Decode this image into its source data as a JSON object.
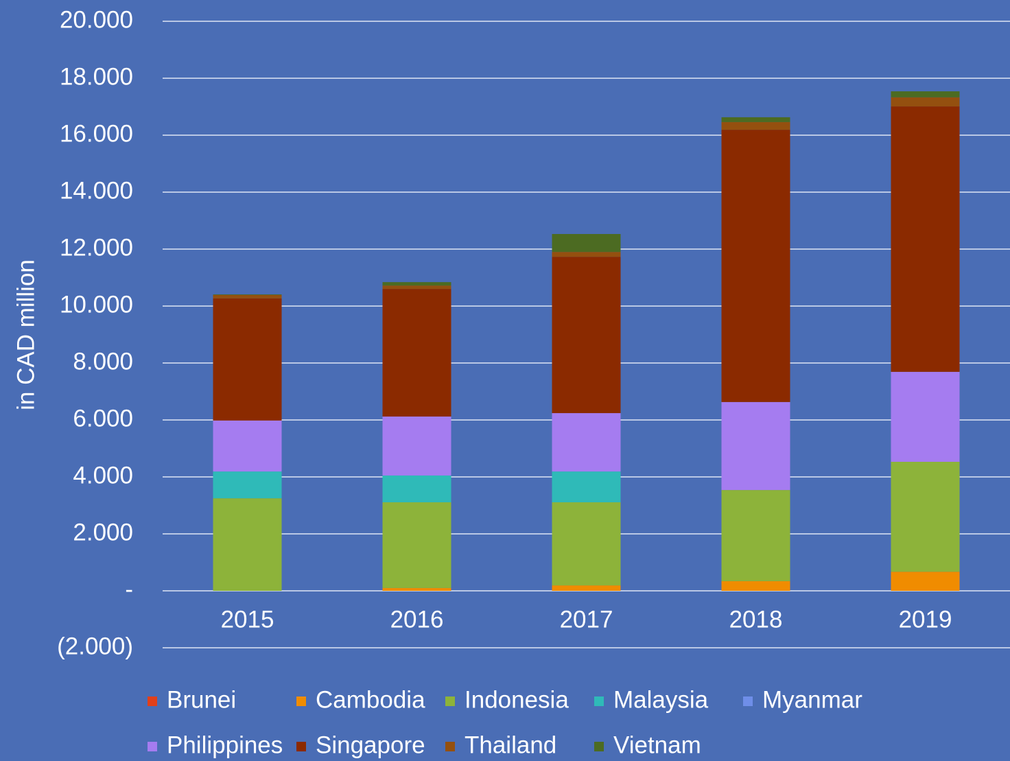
{
  "chart_data": {
    "type": "stacked_bar",
    "ylabel": "in CAD million",
    "categories": [
      "2015",
      "2016",
      "2017",
      "2018",
      "2019"
    ],
    "series": [
      {
        "name": "Brunei",
        "color": "#e0401b",
        "values": [
          0,
          0,
          0,
          0,
          0
        ]
      },
      {
        "name": "Cambodia",
        "color": "#f08c00",
        "values": [
          0,
          100,
          190,
          340,
          670
        ]
      },
      {
        "name": "Indonesia",
        "color": "#8db33a",
        "values": [
          3250,
          3010,
          2920,
          3200,
          3860
        ]
      },
      {
        "name": "Malaysia",
        "color": "#2fbab8",
        "values": [
          940,
          940,
          1080,
          0,
          0
        ]
      },
      {
        "name": "Myanmar",
        "color": "#6f8ee8",
        "values": [
          0,
          0,
          0,
          0,
          0
        ]
      },
      {
        "name": "Philippines",
        "color": "#a57cf0",
        "values": [
          1790,
          2070,
          2050,
          3090,
          3160
        ]
      },
      {
        "name": "Singapore",
        "color": "#8b2a00",
        "values": [
          4290,
          4480,
          5490,
          9560,
          9320
        ]
      },
      {
        "name": "Thailand",
        "color": "#94500f",
        "values": [
          120,
          120,
          170,
          270,
          320
        ]
      },
      {
        "name": "Vietnam",
        "color": "#4c6b22",
        "values": [
          20,
          120,
          630,
          170,
          210
        ]
      }
    ],
    "ylim": [
      -2000,
      20000
    ],
    "yticks": [
      {
        "value": -2000,
        "label": "(2.000)"
      },
      {
        "value": 0,
        "label": "-"
      },
      {
        "value": 2000,
        "label": "2.000"
      },
      {
        "value": 4000,
        "label": "4.000"
      },
      {
        "value": 6000,
        "label": "6.000"
      },
      {
        "value": 8000,
        "label": "8.000"
      },
      {
        "value": 10000,
        "label": "10.000"
      },
      {
        "value": 12000,
        "label": "12.000"
      },
      {
        "value": 14000,
        "label": "14.000"
      },
      {
        "value": 16000,
        "label": "16.000"
      },
      {
        "value": 18000,
        "label": "18.000"
      },
      {
        "value": 20000,
        "label": "20.000"
      }
    ],
    "grid": true
  }
}
